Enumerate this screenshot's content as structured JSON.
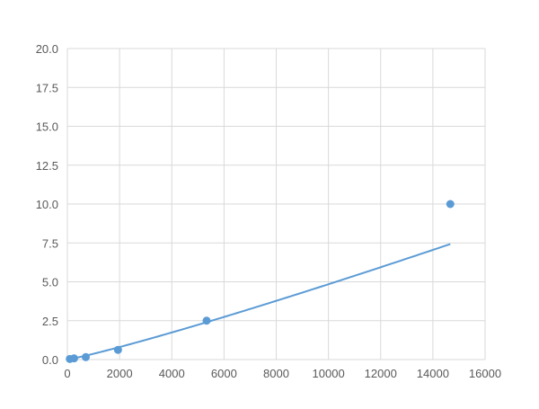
{
  "chart_data": {
    "type": "scatter",
    "title": "",
    "xlabel": "",
    "ylabel": "",
    "xlim": [
      0,
      16000
    ],
    "ylim": [
      0,
      20
    ],
    "xticks": [
      "0",
      "2000",
      "4000",
      "6000",
      "8000",
      "10000",
      "12000",
      "14000",
      "16000"
    ],
    "yticks": [
      "0.0",
      "2.5",
      "5.0",
      "7.5",
      "10.0",
      "12.5",
      "15.0",
      "17.5",
      "20.0"
    ],
    "grid": true,
    "series": [
      {
        "x": [
          93,
          256,
          705,
          1939,
          5333,
          14667
        ],
        "y": [
          0.039,
          0.078,
          0.156,
          0.625,
          2.5,
          10.0
        ],
        "color": "#5b9bd5",
        "trendline": "smooth curve"
      }
    ]
  }
}
